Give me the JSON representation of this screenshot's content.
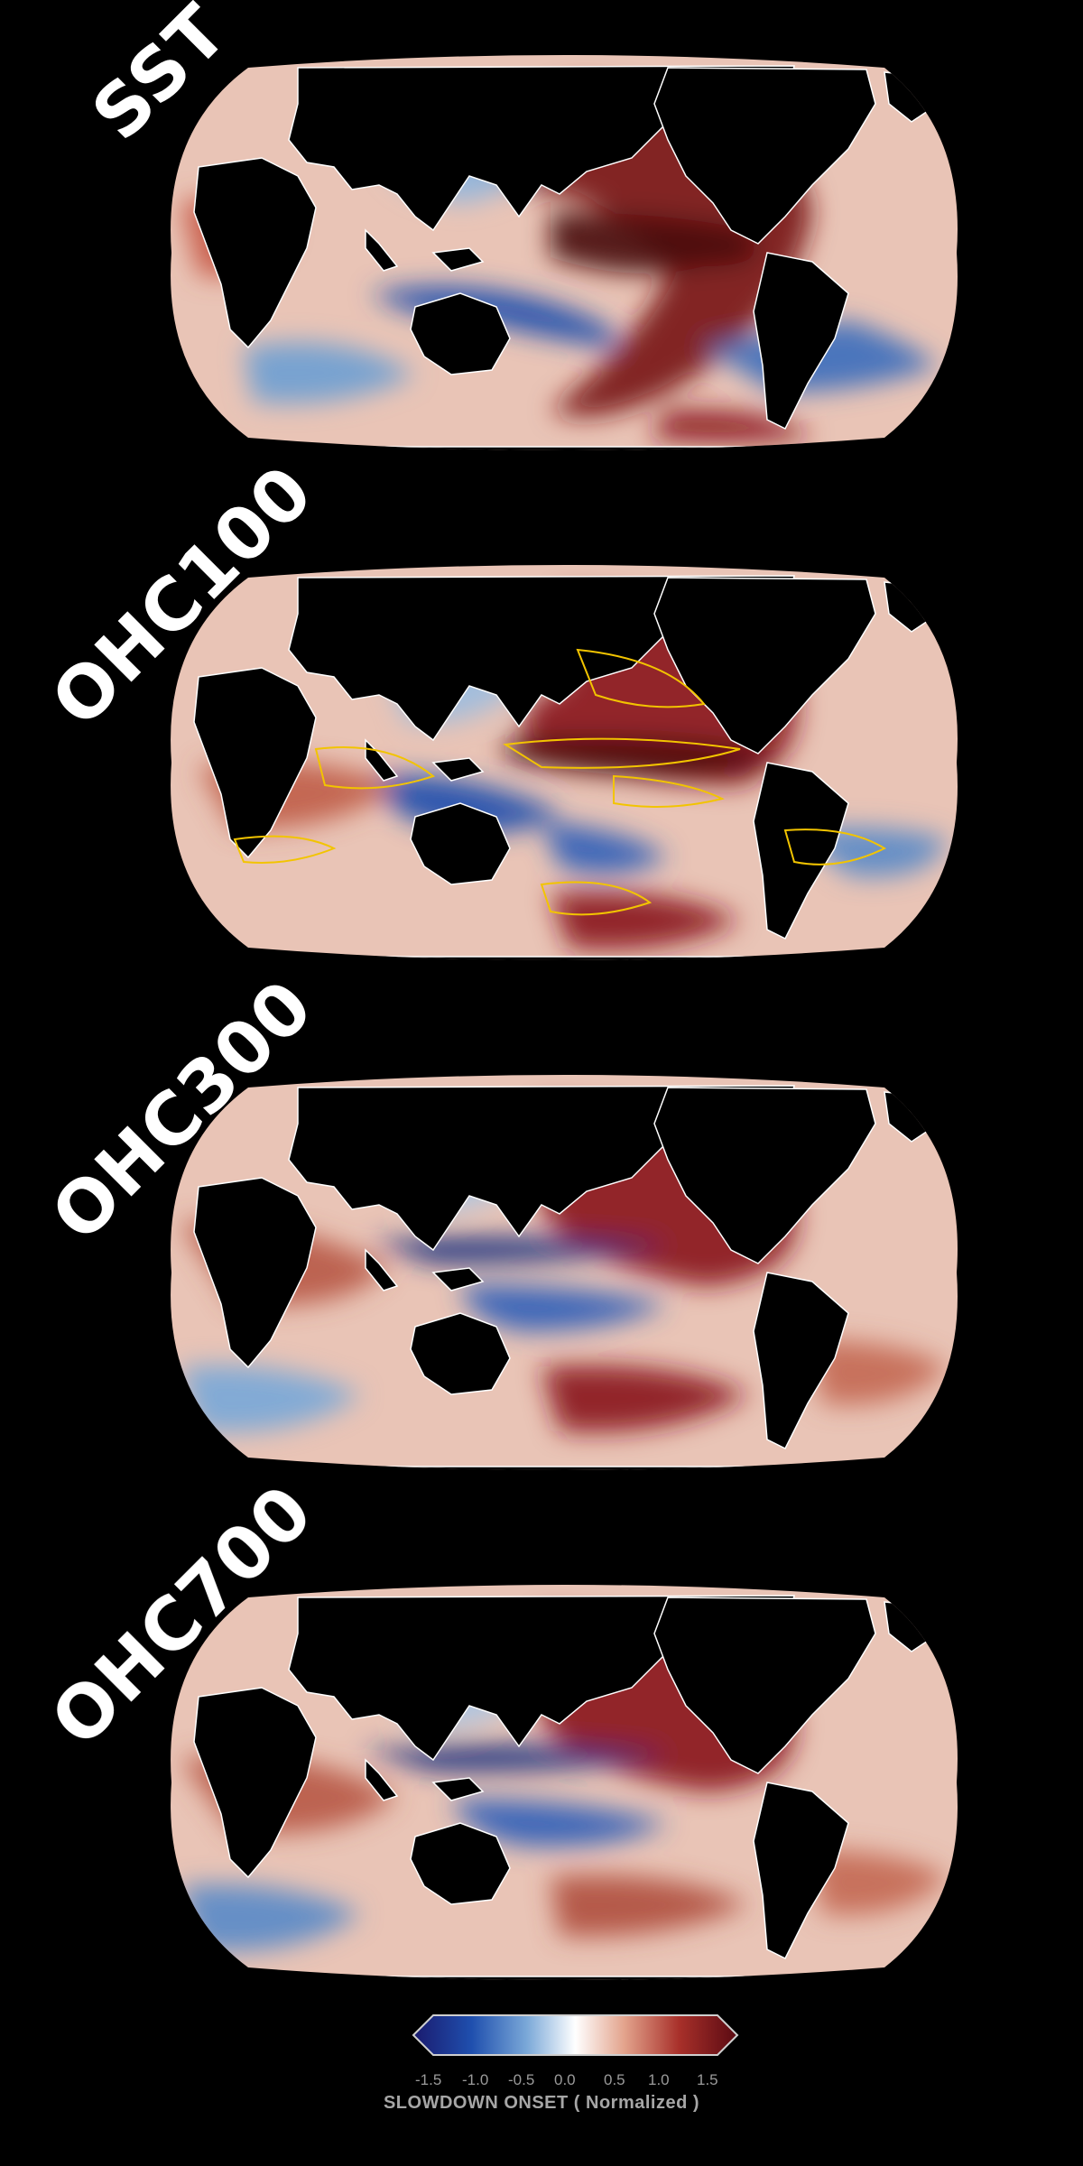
{
  "panels": [
    {
      "label": "SST"
    },
    {
      "label": "OHC100"
    },
    {
      "label": "OHC300"
    },
    {
      "label": "OHC700"
    }
  ],
  "colorbar": {
    "ticks": [
      "-1.5",
      "-1.0",
      "-0.5",
      "0.0",
      "0.5",
      "1.0",
      "1.5"
    ],
    "title": "SLOWDOWN ONSET ( Normalized )",
    "colors": [
      "#1a1a6e",
      "#1f4fae",
      "#6fa0d8",
      "#ffffff",
      "#e0a08a",
      "#a8302a",
      "#5a0a12"
    ]
  }
}
